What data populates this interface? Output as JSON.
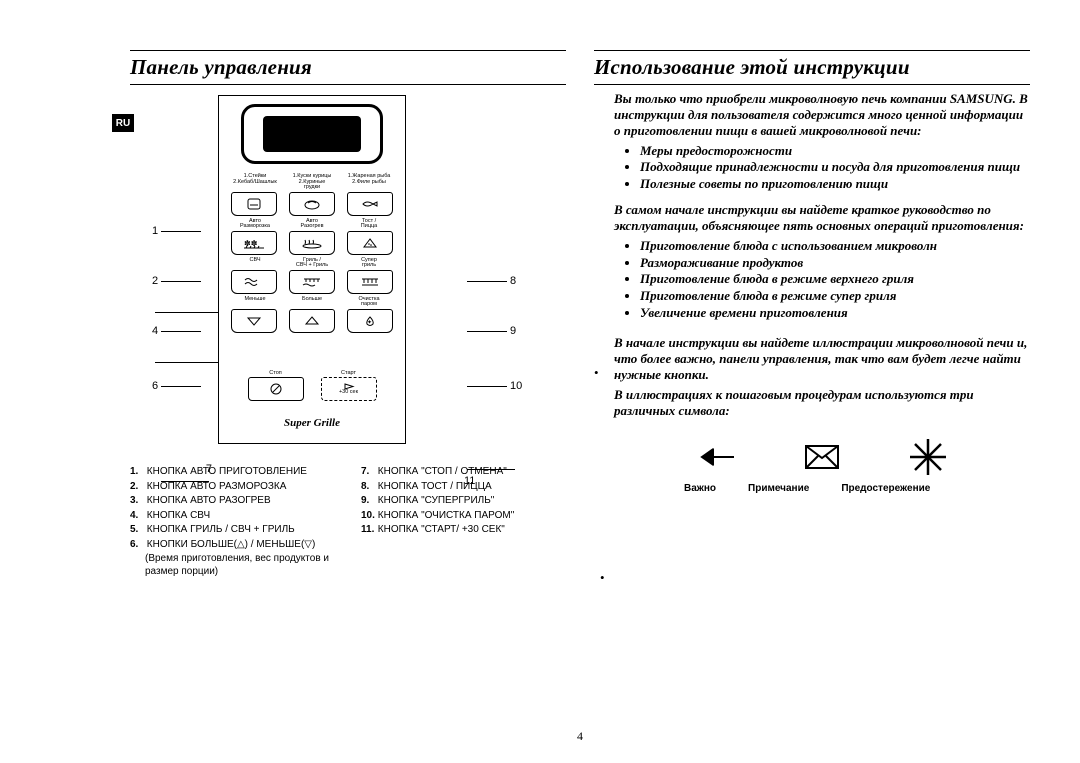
{
  "lang_tab": "RU",
  "page_number": "4",
  "left": {
    "title": "Панель управления",
    "brand": "Super Grille",
    "row1_labels": [
      "1.Стейки\n2.Кебаб/Шашлык",
      "1.Куски курицы\n2.Куриные грудки",
      "1.Жареная рыба\n2.Филе рыбы"
    ],
    "row2_labels": [
      "Авто\nРазморозка",
      "Авто\nРазогрев",
      "Тост /\nПицца"
    ],
    "row3_labels": [
      "СВЧ",
      "Гриль /\nСВЧ + Гриль",
      "Супер\nгриль"
    ],
    "row4_labels": [
      "Меньше",
      "Больше",
      "Очистка\nпаром"
    ],
    "stop_label": "Стоп",
    "start_label": "Старт",
    "start_sub": "+30 сек",
    "callouts_left": {
      "1": 130,
      "2": 180,
      "3": 199,
      "4": 230,
      "5": 249,
      "6": 285,
      "7": 368
    },
    "callouts_right": {
      "8": 180,
      "9": 230,
      "10": 285,
      "11": 368
    },
    "legend_left": [
      {
        "n": "1.",
        "t": "КНОПКА АВТО ПРИГОТОВЛЕНИЕ"
      },
      {
        "n": "2.",
        "t": "КНОПКА АВТО РАЗМОРОЗКА"
      },
      {
        "n": "3.",
        "t": "КНОПКА АВТО РАЗОГРЕВ"
      },
      {
        "n": "4.",
        "t": "КНОПКА СВЧ"
      },
      {
        "n": "5.",
        "t": "КНОПКА ГРИЛЬ / СВЧ + ГРИЛЬ"
      },
      {
        "n": "6.",
        "t": "КНОПКИ БОЛЬШЕ(△) / МЕНЬШЕ(▽)"
      }
    ],
    "legend_left_note": "(Время приготовления, вес продуктов и размер порции)",
    "legend_right": [
      {
        "n": "7.",
        "t": "КНОПКА \"СТОП / ОТМЕНА\""
      },
      {
        "n": "8.",
        "t": "КНОПКА ТОСТ / ПИЦЦА"
      },
      {
        "n": "9.",
        "t": "КНОПКА \"СУПЕРГРИЛЬ\""
      },
      {
        "n": "10.",
        "t": "КНОПКА \"ОЧИСТКА ПАРОМ\""
      },
      {
        "n": "11.",
        "t": "КНОПКА \"СТАРТ/ +30 СЕК\""
      }
    ]
  },
  "right": {
    "title": "Использование этой инструкции",
    "intro1": "Вы только что приобрели микроволновую печь компании SAMSUNG. В инструкции для пользователя содержится много ценной информации о приготовлении пищи в вашей микроволновой печи:",
    "care_bullets": [
      "Меры предосторожности",
      "Подходящие принадлежности и посуда для приготовления пищи",
      "Полезные советы по приготовлению пищи"
    ],
    "intro2": "В самом начале инструкции вы найдете краткое руководство по эксплуатации, объясняющее пять основных операций приготовления:",
    "ops_bullets": [
      "Приготовление блюда с использованием микроволн",
      "Размораживание продуктов",
      "Приготовление блюда в режиме верхнего гриля",
      "Приготовление блюда в режиме супер гриля",
      "Увеличение времени приготовления"
    ],
    "intro3a": "В начале инструкции вы найдете иллюстрации микроволновой печи и, что более важно, панели управления, так что вам будет легче найти нужные кнопки.",
    "intro3b": "В иллюстрациях к пошаговым процедурам используются три различных символа:",
    "sym_labels": [
      "Важно",
      "Примечание",
      "Предостережение"
    ]
  },
  "colors": {
    "text": "#000000",
    "bg": "#ffffff"
  }
}
